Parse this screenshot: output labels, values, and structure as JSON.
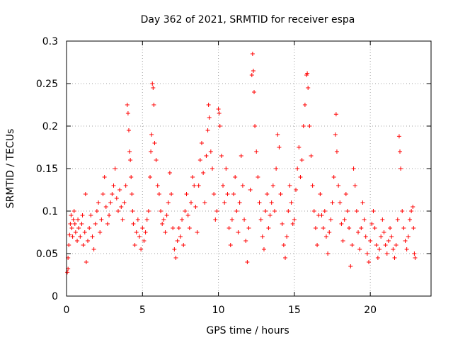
{
  "chart_data": {
    "type": "scatter",
    "title": "Day 362 of 2021, SRMTID for receiver espa",
    "xlabel": "GPS time / hours",
    "ylabel": "SRMTID / TECUs",
    "xlim": [
      0,
      24
    ],
    "ylim": [
      0,
      0.3
    ],
    "xticks": [
      0,
      5,
      10,
      15,
      20
    ],
    "xtick_labels": [
      "0",
      "5",
      "10",
      "15",
      "20"
    ],
    "yticks": [
      0,
      0.05,
      0.1,
      0.15,
      0.2,
      0.25,
      0.3
    ],
    "ytick_labels": [
      "0",
      "0.05",
      "0.1",
      "0.15",
      "0.2",
      "0.25",
      "0.3"
    ],
    "grid": true,
    "marker": "+",
    "color": "#ff0000",
    "series": [
      {
        "name": "SRMTID",
        "points": [
          [
            0.05,
            0.028
          ],
          [
            0.1,
            0.032
          ],
          [
            0.1,
            0.045
          ],
          [
            0.15,
            0.06
          ],
          [
            0.2,
            0.072
          ],
          [
            0.25,
            0.085
          ],
          [
            0.3,
            0.095
          ],
          [
            0.35,
            0.08
          ],
          [
            0.4,
            0.07
          ],
          [
            0.45,
            0.09
          ],
          [
            0.5,
            0.1
          ],
          [
            0.55,
            0.085
          ],
          [
            0.6,
            0.075
          ],
          [
            0.7,
            0.065
          ],
          [
            0.75,
            0.09
          ],
          [
            0.8,
            0.08
          ],
          [
            0.9,
            0.07
          ],
          [
            1.0,
            0.085
          ],
          [
            1.05,
            0.095
          ],
          [
            1.1,
            0.06
          ],
          [
            1.2,
            0.075
          ],
          [
            1.25,
            0.12
          ],
          [
            1.3,
            0.04
          ],
          [
            1.4,
            0.065
          ],
          [
            1.5,
            0.08
          ],
          [
            1.6,
            0.095
          ],
          [
            1.7,
            0.07
          ],
          [
            1.8,
            0.055
          ],
          [
            1.9,
            0.085
          ],
          [
            2.0,
            0.1
          ],
          [
            2.1,
            0.11
          ],
          [
            2.2,
            0.075
          ],
          [
            2.3,
            0.09
          ],
          [
            2.4,
            0.12
          ],
          [
            2.5,
            0.14
          ],
          [
            2.6,
            0.105
          ],
          [
            2.7,
            0.085
          ],
          [
            2.8,
            0.095
          ],
          [
            2.9,
            0.11
          ],
          [
            3.0,
            0.12
          ],
          [
            3.1,
            0.13
          ],
          [
            3.2,
            0.15
          ],
          [
            3.3,
            0.115
          ],
          [
            3.4,
            0.1
          ],
          [
            3.5,
            0.125
          ],
          [
            3.6,
            0.105
          ],
          [
            3.7,
            0.09
          ],
          [
            3.8,
            0.11
          ],
          [
            3.9,
            0.13
          ],
          [
            4.0,
            0.225
          ],
          [
            4.05,
            0.215
          ],
          [
            4.1,
            0.195
          ],
          [
            4.15,
            0.17
          ],
          [
            4.2,
            0.16
          ],
          [
            4.25,
            0.14
          ],
          [
            4.3,
            0.12
          ],
          [
            4.35,
            0.1
          ],
          [
            4.4,
            0.085
          ],
          [
            4.5,
            0.06
          ],
          [
            4.6,
            0.075
          ],
          [
            4.7,
            0.09
          ],
          [
            4.8,
            0.07
          ],
          [
            4.9,
            0.055
          ],
          [
            5.0,
            0.08
          ],
          [
            5.1,
            0.065
          ],
          [
            5.2,
            0.075
          ],
          [
            5.3,
            0.09
          ],
          [
            5.4,
            0.1
          ],
          [
            5.5,
            0.14
          ],
          [
            5.55,
            0.17
          ],
          [
            5.6,
            0.19
          ],
          [
            5.65,
            0.25
          ],
          [
            5.7,
            0.245
          ],
          [
            5.75,
            0.225
          ],
          [
            5.8,
            0.18
          ],
          [
            5.9,
            0.16
          ],
          [
            6.0,
            0.13
          ],
          [
            6.1,
            0.12
          ],
          [
            6.2,
            0.1
          ],
          [
            6.3,
            0.085
          ],
          [
            6.4,
            0.09
          ],
          [
            6.5,
            0.075
          ],
          [
            6.6,
            0.095
          ],
          [
            6.7,
            0.11
          ],
          [
            6.8,
            0.145
          ],
          [
            6.9,
            0.12
          ],
          [
            7.0,
            0.08
          ],
          [
            7.1,
            0.055
          ],
          [
            7.2,
            0.045
          ],
          [
            7.3,
            0.065
          ],
          [
            7.4,
            0.08
          ],
          [
            7.5,
            0.07
          ],
          [
            7.6,
            0.09
          ],
          [
            7.7,
            0.06
          ],
          [
            7.8,
            0.1
          ],
          [
            7.9,
            0.12
          ],
          [
            8.0,
            0.095
          ],
          [
            8.1,
            0.08
          ],
          [
            8.2,
            0.11
          ],
          [
            8.3,
            0.14
          ],
          [
            8.4,
            0.13
          ],
          [
            8.5,
            0.105
          ],
          [
            8.6,
            0.075
          ],
          [
            8.7,
            0.13
          ],
          [
            8.8,
            0.16
          ],
          [
            8.9,
            0.18
          ],
          [
            9.0,
            0.145
          ],
          [
            9.1,
            0.11
          ],
          [
            9.2,
            0.165
          ],
          [
            9.3,
            0.195
          ],
          [
            9.35,
            0.225
          ],
          [
            9.4,
            0.21
          ],
          [
            9.5,
            0.17
          ],
          [
            9.6,
            0.15
          ],
          [
            9.7,
            0.12
          ],
          [
            9.8,
            0.09
          ],
          [
            9.9,
            0.1
          ],
          [
            10.0,
            0.22
          ],
          [
            10.05,
            0.215
          ],
          [
            10.1,
            0.2
          ],
          [
            10.2,
            0.165
          ],
          [
            10.3,
            0.13
          ],
          [
            10.4,
            0.11
          ],
          [
            10.5,
            0.15
          ],
          [
            10.6,
            0.12
          ],
          [
            10.7,
            0.08
          ],
          [
            10.8,
            0.06
          ],
          [
            10.9,
            0.09
          ],
          [
            11.0,
            0.12
          ],
          [
            11.1,
            0.14
          ],
          [
            11.2,
            0.1
          ],
          [
            11.3,
            0.075
          ],
          [
            11.4,
            0.11
          ],
          [
            11.5,
            0.165
          ],
          [
            11.6,
            0.13
          ],
          [
            11.7,
            0.09
          ],
          [
            11.8,
            0.065
          ],
          [
            11.9,
            0.04
          ],
          [
            12.0,
            0.08
          ],
          [
            12.1,
            0.125
          ],
          [
            12.2,
            0.26
          ],
          [
            12.25,
            0.285
          ],
          [
            12.3,
            0.265
          ],
          [
            12.35,
            0.24
          ],
          [
            12.4,
            0.2
          ],
          [
            12.5,
            0.17
          ],
          [
            12.6,
            0.14
          ],
          [
            12.7,
            0.11
          ],
          [
            12.8,
            0.09
          ],
          [
            12.9,
            0.07
          ],
          [
            13.0,
            0.055
          ],
          [
            13.1,
            0.1
          ],
          [
            13.2,
            0.12
          ],
          [
            13.3,
            0.08
          ],
          [
            13.4,
            0.095
          ],
          [
            13.5,
            0.11
          ],
          [
            13.6,
            0.13
          ],
          [
            13.7,
            0.1
          ],
          [
            13.8,
            0.15
          ],
          [
            13.9,
            0.19
          ],
          [
            14.0,
            0.175
          ],
          [
            14.1,
            0.12
          ],
          [
            14.2,
            0.085
          ],
          [
            14.3,
            0.06
          ],
          [
            14.4,
            0.045
          ],
          [
            14.5,
            0.07
          ],
          [
            14.6,
            0.1
          ],
          [
            14.7,
            0.13
          ],
          [
            14.8,
            0.11
          ],
          [
            14.9,
            0.085
          ],
          [
            15.0,
            0.09
          ],
          [
            15.1,
            0.125
          ],
          [
            15.2,
            0.15
          ],
          [
            15.3,
            0.175
          ],
          [
            15.4,
            0.14
          ],
          [
            15.5,
            0.16
          ],
          [
            15.6,
            0.2
          ],
          [
            15.7,
            0.225
          ],
          [
            15.8,
            0.26
          ],
          [
            15.85,
            0.262
          ],
          [
            15.9,
            0.245
          ],
          [
            16.0,
            0.2
          ],
          [
            16.1,
            0.165
          ],
          [
            16.2,
            0.13
          ],
          [
            16.3,
            0.1
          ],
          [
            16.4,
            0.08
          ],
          [
            16.5,
            0.06
          ],
          [
            16.6,
            0.095
          ],
          [
            16.7,
            0.12
          ],
          [
            16.8,
            0.095
          ],
          [
            16.9,
            0.08
          ],
          [
            17.0,
            0.1
          ],
          [
            17.1,
            0.07
          ],
          [
            17.2,
            0.05
          ],
          [
            17.3,
            0.075
          ],
          [
            17.4,
            0.09
          ],
          [
            17.5,
            0.11
          ],
          [
            17.6,
            0.14
          ],
          [
            17.7,
            0.19
          ],
          [
            17.75,
            0.214
          ],
          [
            17.8,
            0.17
          ],
          [
            17.9,
            0.13
          ],
          [
            18.0,
            0.11
          ],
          [
            18.1,
            0.085
          ],
          [
            18.2,
            0.065
          ],
          [
            18.3,
            0.09
          ],
          [
            18.4,
            0.12
          ],
          [
            18.5,
            0.1
          ],
          [
            18.6,
            0.08
          ],
          [
            18.7,
            0.035
          ],
          [
            18.8,
            0.06
          ],
          [
            18.9,
            0.15
          ],
          [
            19.0,
            0.13
          ],
          [
            19.1,
            0.1
          ],
          [
            19.2,
            0.075
          ],
          [
            19.3,
            0.055
          ],
          [
            19.4,
            0.08
          ],
          [
            19.5,
            0.11
          ],
          [
            19.6,
            0.09
          ],
          [
            19.7,
            0.07
          ],
          [
            19.8,
            0.05
          ],
          [
            19.9,
            0.04
          ],
          [
            20.0,
            0.065
          ],
          [
            20.1,
            0.085
          ],
          [
            20.2,
            0.1
          ],
          [
            20.3,
            0.08
          ],
          [
            20.4,
            0.06
          ],
          [
            20.5,
            0.045
          ],
          [
            20.6,
            0.055
          ],
          [
            20.7,
            0.07
          ],
          [
            20.8,
            0.09
          ],
          [
            20.9,
            0.075
          ],
          [
            21.0,
            0.06
          ],
          [
            21.1,
            0.05
          ],
          [
            21.2,
            0.065
          ],
          [
            21.3,
            0.08
          ],
          [
            21.4,
            0.07
          ],
          [
            21.5,
            0.055
          ],
          [
            21.6,
            0.045
          ],
          [
            21.7,
            0.06
          ],
          [
            21.8,
            0.09
          ],
          [
            21.9,
            0.188
          ],
          [
            21.95,
            0.17
          ],
          [
            22.0,
            0.15
          ],
          [
            22.1,
            0.1
          ],
          [
            22.2,
            0.08
          ],
          [
            22.3,
            0.065
          ],
          [
            22.4,
            0.055
          ],
          [
            22.5,
            0.07
          ],
          [
            22.6,
            0.09
          ],
          [
            22.7,
            0.1
          ],
          [
            22.8,
            0.105
          ],
          [
            22.85,
            0.08
          ],
          [
            22.9,
            0.05
          ],
          [
            22.95,
            0.045
          ]
        ]
      }
    ]
  }
}
